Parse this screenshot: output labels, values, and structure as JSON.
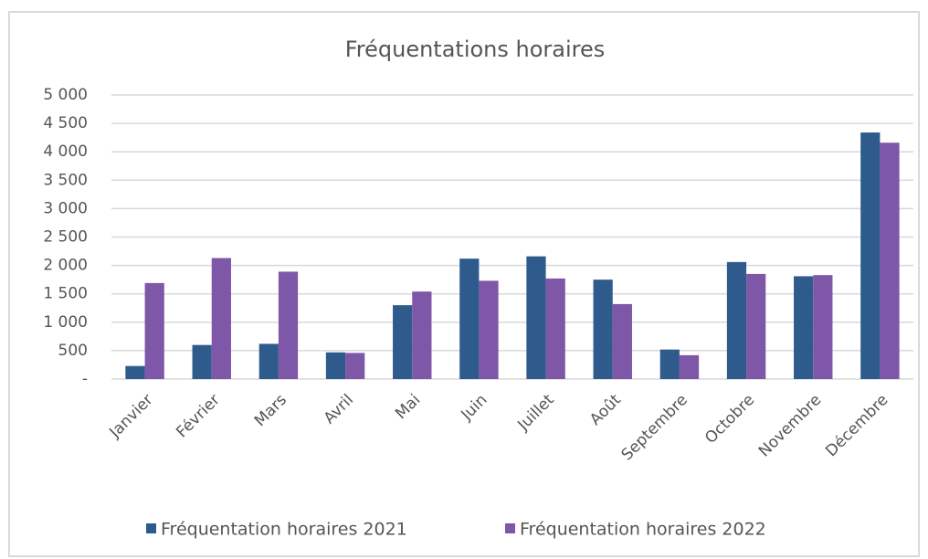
{
  "chart_data": {
    "type": "bar",
    "title": "Fréquentations horaires",
    "categories": [
      "Janvier",
      "Février",
      "Mars",
      "Avril",
      "Mai",
      "Juin",
      "Juillet",
      "Août",
      "Septembre",
      "Octobre",
      "Novembre",
      "Décembre"
    ],
    "series": [
      {
        "name": "Fréquentation horaires 2021",
        "color": "#2f5b8c",
        "values": [
          230,
          600,
          620,
          470,
          1300,
          2120,
          2160,
          1750,
          520,
          2060,
          1810,
          4340
        ]
      },
      {
        "name": "Fréquentation horaires 2022",
        "color": "#7e57a8",
        "values": [
          1690,
          2130,
          1890,
          460,
          1540,
          1730,
          1770,
          1320,
          420,
          1850,
          1830,
          4160
        ]
      }
    ],
    "ylim": [
      0,
      5000
    ],
    "yticks": [
      {
        "value": 0,
        "label": "-"
      },
      500,
      {
        "value": 1000,
        "label": "1 000"
      },
      {
        "value": 1500,
        "label": "1 500"
      },
      {
        "value": 2000,
        "label": "2 000"
      },
      {
        "value": 2500,
        "label": "2 500"
      },
      {
        "value": 3000,
        "label": "3 000"
      },
      {
        "value": 3500,
        "label": "3 500"
      },
      {
        "value": 4000,
        "label": "4 000"
      },
      {
        "value": 4500,
        "label": "4 500"
      },
      {
        "value": 5000,
        "label": "5 000"
      }
    ],
    "grid": true,
    "legend": "bottom"
  }
}
